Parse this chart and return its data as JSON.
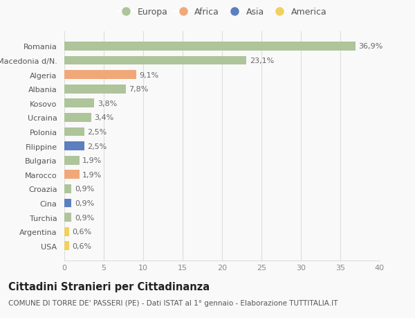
{
  "countries": [
    "Romania",
    "Macedonia d/N.",
    "Algeria",
    "Albania",
    "Kosovo",
    "Ucraina",
    "Polonia",
    "Filippine",
    "Bulgaria",
    "Marocco",
    "Croazia",
    "Cina",
    "Turchia",
    "Argentina",
    "USA"
  ],
  "values": [
    36.9,
    23.1,
    9.1,
    7.8,
    3.8,
    3.4,
    2.5,
    2.5,
    1.9,
    1.9,
    0.9,
    0.9,
    0.9,
    0.6,
    0.6
  ],
  "labels": [
    "36,9%",
    "23,1%",
    "9,1%",
    "7,8%",
    "3,8%",
    "3,4%",
    "2,5%",
    "2,5%",
    "1,9%",
    "1,9%",
    "0,9%",
    "0,9%",
    "0,9%",
    "0,6%",
    "0,6%"
  ],
  "continents": [
    "Europa",
    "Europa",
    "Africa",
    "Europa",
    "Europa",
    "Europa",
    "Europa",
    "Asia",
    "Europa",
    "Africa",
    "Europa",
    "Asia",
    "Europa",
    "America",
    "America"
  ],
  "continent_colors": {
    "Europa": "#aec49a",
    "Africa": "#f0a878",
    "Asia": "#5b7fbf",
    "America": "#f0d060"
  },
  "legend_order": [
    "Europa",
    "Africa",
    "Asia",
    "America"
  ],
  "title": "Cittadini Stranieri per Cittadinanza",
  "subtitle": "COMUNE DI TORRE DE' PASSERI (PE) - Dati ISTAT al 1° gennaio - Elaborazione TUTTITALIA.IT",
  "xlim": [
    0,
    40
  ],
  "xticks": [
    0,
    5,
    10,
    15,
    20,
    25,
    30,
    35,
    40
  ],
  "background_color": "#f9f9f9",
  "grid_color": "#dddddd",
  "bar_height": 0.62,
  "label_fontsize": 8,
  "title_fontsize": 10.5,
  "subtitle_fontsize": 7.5,
  "tick_fontsize": 8,
  "legend_fontsize": 9
}
